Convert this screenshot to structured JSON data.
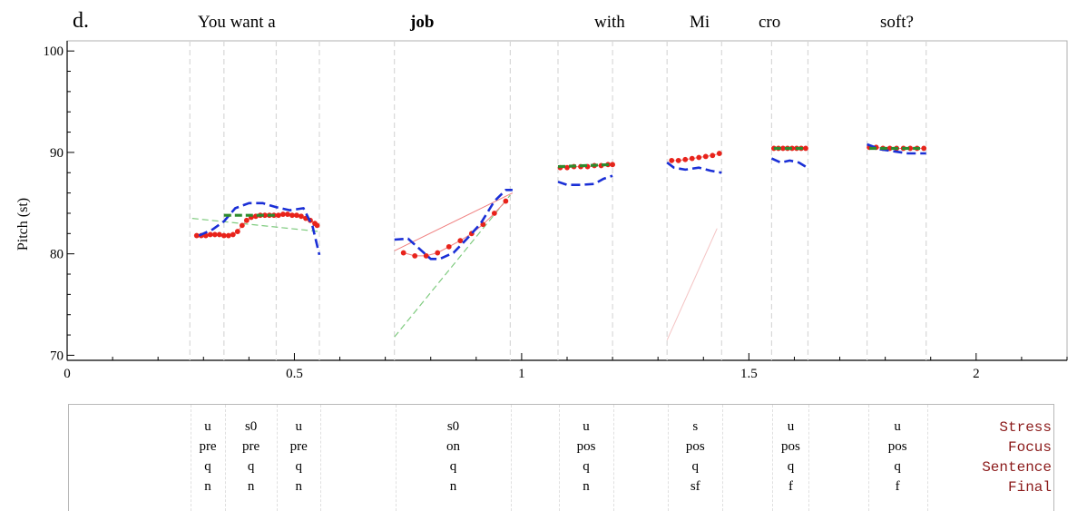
{
  "panel_label": "d.",
  "words": [
    {
      "text": "You want  a",
      "bold": false
    },
    {
      "text": "job",
      "bold": true
    },
    {
      "text": "with",
      "bold": false
    },
    {
      "text": "Mi",
      "bold": false
    },
    {
      "text": "cro",
      "bold": false
    },
    {
      "text": "soft?",
      "bold": false
    }
  ],
  "chart_data": {
    "type": "line",
    "title": "",
    "xlabel": "",
    "ylabel": "Pitch (st)",
    "xlim": [
      0,
      2.2
    ],
    "ylim": [
      69.5,
      101
    ],
    "x_ticks": [
      0,
      0.5,
      1,
      1.5,
      2
    ],
    "x_tick_labels": [
      "0",
      "0.5",
      "1",
      "1.5",
      "2"
    ],
    "y_ticks": [
      70,
      80,
      90,
      100
    ],
    "y_tick_labels": [
      "70",
      "80",
      "90",
      "100"
    ],
    "grid": false,
    "syllable_boundaries": [
      0.27,
      0.345,
      0.46,
      0.555,
      0.72,
      0.975,
      1.08,
      1.2,
      1.32,
      1.44,
      1.55,
      1.63,
      1.76,
      1.89
    ],
    "series": [
      {
        "style": "red-dots",
        "color": "#e8231b",
        "segments": [
          {
            "x": [
              0.285,
              0.295,
              0.305,
              0.315,
              0.325,
              0.335,
              0.345,
              0.355,
              0.365,
              0.375,
              0.385,
              0.395,
              0.405,
              0.415,
              0.425,
              0.435,
              0.445,
              0.455,
              0.465,
              0.475,
              0.485,
              0.495,
              0.505,
              0.515,
              0.525,
              0.535,
              0.545,
              0.55
            ],
            "y": [
              81.8,
              81.8,
              81.8,
              81.9,
              81.9,
              81.9,
              81.8,
              81.8,
              81.9,
              82.2,
              82.8,
              83.3,
              83.6,
              83.7,
              83.8,
              83.8,
              83.8,
              83.8,
              83.8,
              83.9,
              83.9,
              83.8,
              83.8,
              83.7,
              83.5,
              83.3,
              83.0,
              82.8
            ]
          },
          {
            "x": [
              0.74,
              0.765,
              0.79,
              0.815,
              0.84,
              0.865,
              0.89,
              0.915,
              0.94,
              0.965
            ],
            "y": [
              80.1,
              79.8,
              79.8,
              80.1,
              80.7,
              81.3,
              82.0,
              82.9,
              84.0,
              85.2
            ]
          },
          {
            "x": [
              1.085,
              1.1,
              1.115,
              1.13,
              1.145,
              1.16,
              1.175,
              1.19,
              1.2
            ],
            "y": [
              88.5,
              88.5,
              88.6,
              88.6,
              88.6,
              88.7,
              88.7,
              88.8,
              88.8
            ]
          },
          {
            "x": [
              1.33,
              1.345,
              1.36,
              1.375,
              1.39,
              1.405,
              1.42,
              1.435
            ],
            "y": [
              89.2,
              89.2,
              89.3,
              89.4,
              89.5,
              89.6,
              89.7,
              89.9
            ]
          },
          {
            "x": [
              1.555,
              1.565,
              1.575,
              1.585,
              1.595,
              1.605,
              1.615,
              1.625
            ],
            "y": [
              90.4,
              90.4,
              90.4,
              90.4,
              90.4,
              90.4,
              90.4,
              90.4
            ]
          },
          {
            "x": [
              1.765,
              1.78,
              1.795,
              1.81,
              1.825,
              1.84,
              1.855,
              1.87,
              1.885
            ],
            "y": [
              90.5,
              90.5,
              90.4,
              90.4,
              90.4,
              90.4,
              90.4,
              90.4,
              90.4
            ]
          }
        ]
      },
      {
        "style": "blue-dashed",
        "color": "#1a2fd6",
        "segments": [
          {
            "x": [
              0.29,
              0.32,
              0.345,
              0.37,
              0.4,
              0.43,
              0.46,
              0.49,
              0.52,
              0.54,
              0.555
            ],
            "y": [
              81.8,
              82.4,
              83.2,
              84.5,
              85.0,
              85.0,
              84.6,
              84.3,
              84.5,
              82.7,
              79.9
            ]
          },
          {
            "x": [
              0.72,
              0.75,
              0.78,
              0.8,
              0.82,
              0.85,
              0.88,
              0.91,
              0.94,
              0.965,
              0.98
            ],
            "y": [
              81.4,
              81.5,
              80.3,
              79.5,
              79.5,
              80.1,
              81.5,
              83.0,
              85.2,
              86.3,
              86.3
            ]
          },
          {
            "x": [
              1.08,
              1.1,
              1.13,
              1.16,
              1.18,
              1.2
            ],
            "y": [
              87.1,
              86.8,
              86.8,
              86.9,
              87.4,
              87.7
            ]
          },
          {
            "x": [
              1.32,
              1.335,
              1.36,
              1.39,
              1.415,
              1.44
            ],
            "y": [
              89.0,
              88.5,
              88.3,
              88.5,
              88.2,
              88.0
            ]
          },
          {
            "x": [
              1.55,
              1.57,
              1.59,
              1.61,
              1.625
            ],
            "y": [
              89.4,
              89.0,
              89.2,
              89.0,
              88.6
            ]
          },
          {
            "x": [
              1.76,
              1.79,
              1.82,
              1.85,
              1.89
            ],
            "y": [
              90.8,
              90.3,
              90.1,
              89.9,
              89.9
            ]
          }
        ]
      },
      {
        "style": "green-dashed-thick",
        "color": "#2e8b2e",
        "segments": [
          {
            "x": [
              0.345,
              0.46
            ],
            "y": [
              83.8,
              83.8
            ]
          },
          {
            "x": [
              1.08,
              1.2
            ],
            "y": [
              88.6,
              88.8
            ]
          },
          {
            "x": [
              1.555,
              1.625
            ],
            "y": [
              90.4,
              90.4
            ]
          },
          {
            "x": [
              1.765,
              1.885
            ],
            "y": [
              90.4,
              90.4
            ]
          }
        ]
      },
      {
        "style": "green-thin-dashed",
        "color": "#6dbf6d",
        "segments": [
          {
            "x": [
              0.275,
              0.555
            ],
            "y": [
              83.5,
              82.2
            ]
          },
          {
            "x": [
              0.72,
              0.975
            ],
            "y": [
              71.8,
              85.8
            ]
          }
        ]
      },
      {
        "style": "pink-thin",
        "color": "#f08080",
        "segments": [
          {
            "x": [
              0.72,
              0.98
            ],
            "y": [
              80.3,
              86.0
            ]
          }
        ]
      },
      {
        "style": "faint-thin",
        "color": "#f4c4c4",
        "segments": [
          {
            "x": [
              1.32,
              1.43
            ],
            "y": [
              71.5,
              82.5
            ]
          }
        ]
      }
    ]
  },
  "feature_table": {
    "tiers": [
      "Stress",
      "Focus",
      "Sentence",
      "Final"
    ],
    "columns": [
      {
        "x": 0.3075,
        "values": [
          "u",
          "pre",
          "q",
          "n"
        ]
      },
      {
        "x": 0.4025,
        "values": [
          "s0",
          "pre",
          "q",
          "n"
        ]
      },
      {
        "x": 0.5075,
        "values": [
          "u",
          "pre",
          "q",
          "n"
        ]
      },
      {
        "x": 0.8475,
        "values": [
          "s0",
          "on",
          "q",
          "n"
        ]
      },
      {
        "x": 1.14,
        "values": [
          "u",
          "pos",
          "q",
          "n"
        ]
      },
      {
        "x": 1.38,
        "values": [
          "s",
          "pos",
          "q",
          "sf"
        ]
      },
      {
        "x": 1.59,
        "values": [
          "u",
          "pos",
          "q",
          "f"
        ]
      },
      {
        "x": 1.825,
        "values": [
          "u",
          "pos",
          "q",
          "f"
        ]
      }
    ],
    "boundaries": [
      0.27,
      0.345,
      0.46,
      0.555,
      0.72,
      0.975,
      1.08,
      1.2,
      1.32,
      1.44,
      1.55,
      1.63,
      1.76,
      1.89
    ]
  }
}
